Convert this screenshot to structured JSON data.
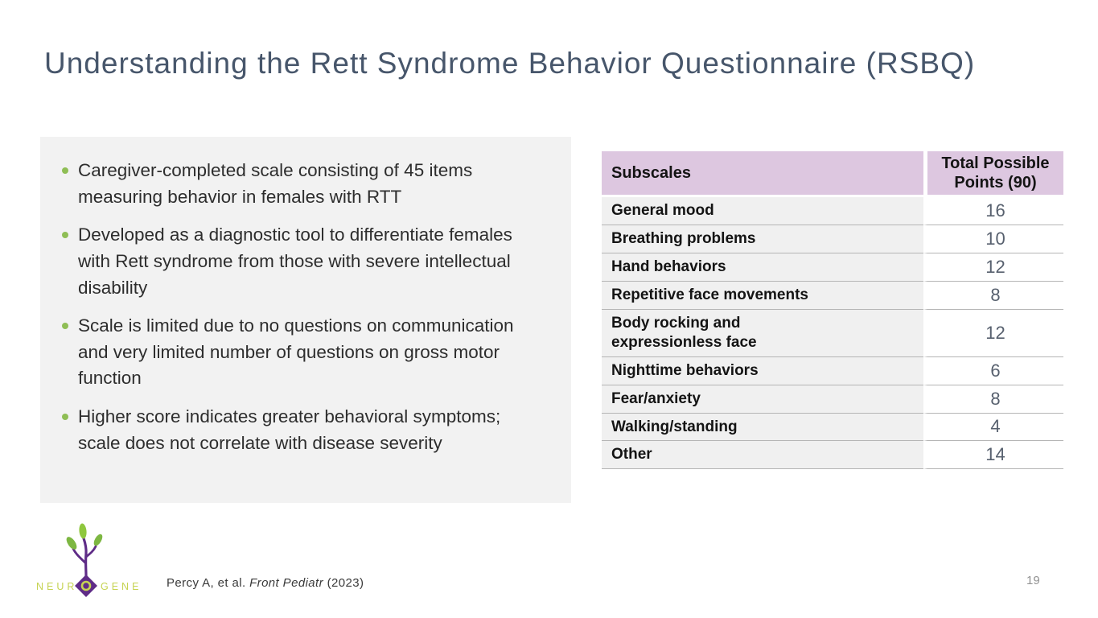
{
  "slide": {
    "title": "Understanding the Rett Syndrome Behavior Questionnaire (RSBQ)",
    "page_number": "19"
  },
  "bullets": [
    "Caregiver-completed scale consisting of 45 items measuring behavior in females with RTT",
    "Developed as a diagnostic tool to differentiate females with Rett syndrome from those with severe intellectual disability",
    "Scale is limited due to no questions on communication and very limited number of questions on gross motor function",
    "Higher score indicates greater behavioral symptoms; scale does not correlate with disease severity"
  ],
  "table": {
    "col1_header": "Subscales",
    "col2_header": "Total Possible Points (90)",
    "rows": [
      {
        "subscale": "General mood",
        "points": "16"
      },
      {
        "subscale": "Breathing problems",
        "points": "10"
      },
      {
        "subscale": "Hand behaviors",
        "points": "12"
      },
      {
        "subscale": "Repetitive face movements",
        "points": "8"
      },
      {
        "subscale": "Body rocking and\nexpressionless face",
        "points": "12"
      },
      {
        "subscale": "Nighttime behaviors",
        "points": "6"
      },
      {
        "subscale": "Fear/anxiety",
        "points": "8"
      },
      {
        "subscale": "Walking/standing",
        "points": "4"
      },
      {
        "subscale": "Other",
        "points": "14"
      }
    ]
  },
  "footer": {
    "citation_prefix": "Percy A, et al. ",
    "citation_journal": "Front Pediatr",
    "citation_suffix": " (2023)",
    "logo_left": "NEUR",
    "logo_right": "GENE"
  },
  "colors": {
    "title": "#47566b",
    "content_box_bg": "#f2f2f2",
    "bullet_dot": "#8fbe55",
    "table_header_bg": "#ddc7e0",
    "table_name_col_bg": "#f0f0f0",
    "table_value_text": "#57606e",
    "row_border": "#b5b5b5",
    "logo_purple": "#5f2c87",
    "logo_leaf_green": "#7db742",
    "logo_text_green": "#c6d352",
    "page_number": "#919191"
  }
}
